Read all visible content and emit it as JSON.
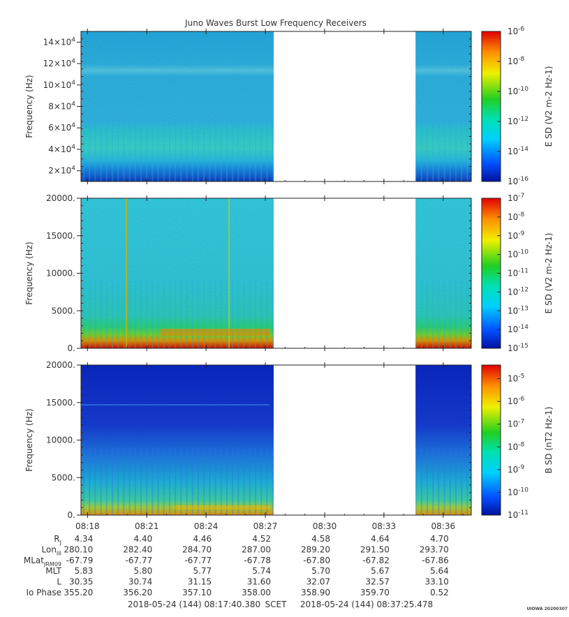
{
  "title": "Juno Waves Burst Low Frequency Receivers",
  "chart_data": [
    {
      "type": "heatmap",
      "ylabel": "Frequency (Hz)",
      "ylim": [
        10000,
        150000
      ],
      "yticks": [
        {
          "value": 20000,
          "mant": "2×10",
          "exp": "4"
        },
        {
          "value": 40000,
          "mant": "4×10",
          "exp": "4"
        },
        {
          "value": 60000,
          "mant": "6×10",
          "exp": "4"
        },
        {
          "value": 80000,
          "mant": "8×10",
          "exp": "4"
        },
        {
          "value": 100000,
          "mant": "10×10",
          "exp": "4"
        },
        {
          "value": 120000,
          "mant": "12×10",
          "exp": "4"
        },
        {
          "value": 140000,
          "mant": "14×10",
          "exp": "4"
        }
      ],
      "colorbar": {
        "label": "E SD (V2 m-2 Hz-1)",
        "log_range": [
          -16,
          -6
        ],
        "ticks": [
          {
            "value": -6,
            "text": "10",
            "exp": "-6"
          },
          {
            "value": -8,
            "text": "10",
            "exp": "-8"
          },
          {
            "value": -10,
            "text": "10",
            "exp": "-10"
          },
          {
            "value": -12,
            "text": "10",
            "exp": "-12"
          },
          {
            "value": -14,
            "text": "10",
            "exp": "-14"
          },
          {
            "value": -16,
            "text": "10",
            "exp": "-16"
          }
        ]
      }
    },
    {
      "type": "heatmap",
      "ylabel": "Frequency (Hz)",
      "ylim": [
        0,
        20000
      ],
      "yticks": [
        {
          "value": 0,
          "text": "0."
        },
        {
          "value": 5000,
          "text": "5000."
        },
        {
          "value": 10000,
          "text": "10000."
        },
        {
          "value": 15000,
          "text": "15000."
        },
        {
          "value": 20000,
          "text": "20000."
        }
      ],
      "colorbar": {
        "label": "E SD (V2 m-2 Hz-1)",
        "log_range": [
          -15,
          -7
        ],
        "ticks": [
          {
            "value": -7,
            "text": "10",
            "exp": "-7"
          },
          {
            "value": -8,
            "text": "10",
            "exp": "-8"
          },
          {
            "value": -9,
            "text": "10",
            "exp": "-9"
          },
          {
            "value": -10,
            "text": "10",
            "exp": "-10"
          },
          {
            "value": -11,
            "text": "10",
            "exp": "-11"
          },
          {
            "value": -12,
            "text": "10",
            "exp": "-12"
          },
          {
            "value": -13,
            "text": "10",
            "exp": "-13"
          },
          {
            "value": -14,
            "text": "10",
            "exp": "-14"
          },
          {
            "value": -15,
            "text": "10",
            "exp": "-15"
          }
        ]
      }
    },
    {
      "type": "heatmap",
      "ylabel": "Frequency (Hz)",
      "ylim": [
        0,
        20000
      ],
      "yticks": [
        {
          "value": 0,
          "text": "0."
        },
        {
          "value": 5000,
          "text": "5000."
        },
        {
          "value": 10000,
          "text": "10000."
        },
        {
          "value": 15000,
          "text": "15000."
        },
        {
          "value": 20000,
          "text": "20000."
        }
      ],
      "colorbar": {
        "label": "B SD (nT2 Hz-1)",
        "log_range": [
          -11,
          -4.4
        ],
        "ticks": [
          {
            "value": -5,
            "text": "10",
            "exp": "-5"
          },
          {
            "value": -6,
            "text": "10",
            "exp": "-6"
          },
          {
            "value": -7,
            "text": "10",
            "exp": "-7"
          },
          {
            "value": -8,
            "text": "10",
            "exp": "-8"
          },
          {
            "value": -9,
            "text": "10",
            "exp": "-9"
          },
          {
            "value": -10,
            "text": "10",
            "exp": "-10"
          },
          {
            "value": -11,
            "text": "10",
            "exp": "-11"
          }
        ]
      }
    }
  ],
  "time_axis": {
    "range_min": [
      17.67,
      37.42
    ],
    "data_gap_min": [
      27.42,
      34.6
    ],
    "ticks": [
      {
        "min": 18,
        "label": "08:18"
      },
      {
        "min": 21,
        "label": "08:21"
      },
      {
        "min": 24,
        "label": "08:24"
      },
      {
        "min": 27,
        "label": "08:27"
      },
      {
        "min": 30,
        "label": "08:30"
      },
      {
        "min": 33,
        "label": "08:33"
      },
      {
        "min": 36,
        "label": "08:36"
      }
    ]
  },
  "ephemeris": {
    "rows": [
      {
        "label": "R",
        "sub": "J",
        "values": [
          "4.34",
          "4.40",
          "4.46",
          "4.52",
          "4.58",
          "4.64",
          "4.70"
        ]
      },
      {
        "label": "Lon",
        "sub": "III",
        "values": [
          "280.10",
          "282.40",
          "284.70",
          "287.00",
          "289.20",
          "291.50",
          "293.70"
        ]
      },
      {
        "label": "MLat",
        "sub": "JRM09",
        "values": [
          "-67.79",
          "-67.77",
          "-67.77",
          "-67.78",
          "-67.80",
          "-67.82",
          "-67.86"
        ]
      },
      {
        "label": "MLT",
        "sub": "",
        "values": [
          "5.83",
          "5.80",
          "5.77",
          "5.74",
          "5.70",
          "5.67",
          "5.64"
        ]
      },
      {
        "label": "L",
        "sub": "",
        "values": [
          "30.35",
          "30.74",
          "31.15",
          "31.60",
          "32.07",
          "32.57",
          "33.10"
        ]
      },
      {
        "label": "Io Phase",
        "sub": "",
        "values": [
          "355.20",
          "356.20",
          "357.10",
          "358.00",
          "358.90",
          "359.70",
          "0.52"
        ]
      }
    ]
  },
  "footer": {
    "start": "2018-05-24 (144) 08:17:40.380",
    "scet": "SCET",
    "end": "2018-05-24 (144) 08:37:25.478",
    "stamp": "UIOWA 20200307"
  }
}
